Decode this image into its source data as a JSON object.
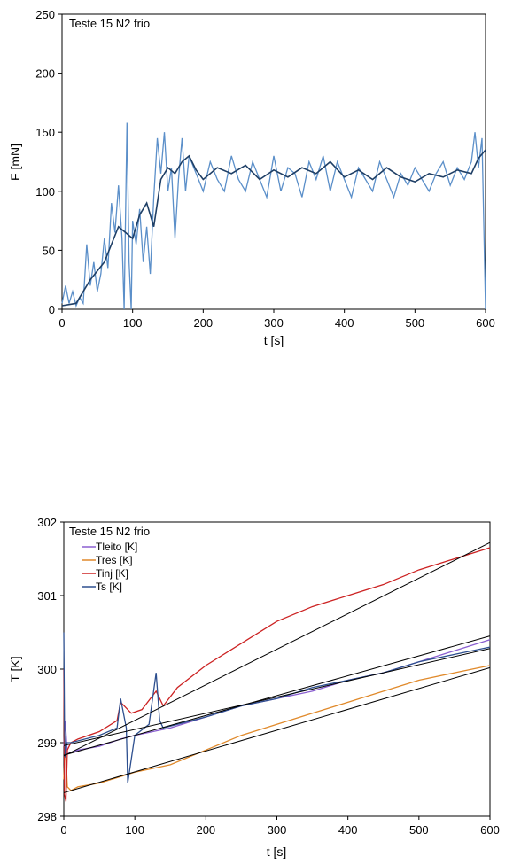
{
  "chart_data": [
    {
      "type": "line",
      "title": "Teste 15 N2 frio",
      "xlabel": "t [s]",
      "ylabel": "F [mN]",
      "xlim": [
        0,
        600
      ],
      "ylim": [
        0,
        250
      ],
      "x_ticks": [
        0,
        100,
        200,
        300,
        400,
        500,
        600
      ],
      "y_ticks": [
        0,
        50,
        100,
        150,
        200,
        250
      ],
      "grid": false,
      "series": [
        {
          "color": "#5b8fc9",
          "x": [
            0,
            5,
            10,
            15,
            20,
            25,
            30,
            35,
            40,
            45,
            50,
            55,
            60,
            65,
            70,
            75,
            80,
            85,
            88,
            90,
            92,
            95,
            98,
            100,
            105,
            110,
            115,
            120,
            125,
            130,
            135,
            140,
            145,
            150,
            155,
            160,
            165,
            170,
            175,
            180,
            190,
            200,
            210,
            220,
            230,
            240,
            250,
            260,
            270,
            280,
            290,
            300,
            310,
            320,
            330,
            340,
            350,
            360,
            370,
            380,
            390,
            400,
            410,
            420,
            430,
            440,
            450,
            460,
            470,
            480,
            490,
            500,
            510,
            520,
            530,
            540,
            550,
            560,
            570,
            580,
            585,
            590,
            595,
            600
          ],
          "values": [
            5,
            20,
            5,
            15,
            3,
            10,
            5,
            55,
            20,
            40,
            15,
            30,
            60,
            35,
            90,
            65,
            105,
            60,
            0,
            80,
            158,
            40,
            0,
            75,
            55,
            85,
            40,
            70,
            30,
            95,
            145,
            115,
            150,
            100,
            120,
            60,
            110,
            145,
            100,
            130,
            115,
            100,
            125,
            110,
            100,
            130,
            110,
            100,
            125,
            110,
            95,
            130,
            100,
            120,
            115,
            95,
            125,
            110,
            130,
            100,
            125,
            110,
            95,
            120,
            110,
            100,
            125,
            110,
            95,
            115,
            105,
            120,
            110,
            100,
            115,
            125,
            105,
            120,
            110,
            125,
            150,
            120,
            145,
            0
          ]
        },
        {
          "color": "#1f3f66",
          "x": [
            0,
            20,
            40,
            60,
            70,
            80,
            90,
            100,
            110,
            120,
            130,
            140,
            150,
            160,
            170,
            180,
            190,
            200,
            220,
            240,
            260,
            280,
            300,
            320,
            340,
            360,
            380,
            400,
            420,
            440,
            460,
            480,
            500,
            520,
            540,
            560,
            580,
            590,
            600
          ],
          "values": [
            3,
            5,
            25,
            40,
            55,
            70,
            65,
            60,
            80,
            90,
            70,
            110,
            120,
            115,
            125,
            130,
            118,
            110,
            120,
            115,
            122,
            110,
            118,
            112,
            120,
            115,
            125,
            112,
            118,
            110,
            120,
            112,
            108,
            115,
            112,
            118,
            115,
            128,
            135
          ]
        }
      ]
    },
    {
      "type": "line",
      "title": "Teste 15 N2 frio",
      "xlabel": "t [s]",
      "ylabel": "T [K]",
      "xlim": [
        0,
        600
      ],
      "ylim": [
        298,
        302
      ],
      "x_ticks": [
        0,
        100,
        200,
        300,
        400,
        500,
        600
      ],
      "y_ticks": [
        298,
        299,
        300,
        301,
        302
      ],
      "grid": false,
      "legend": "top-left",
      "series": [
        {
          "name": "Tleito  [K]",
          "color": "#8a5fd0",
          "x": [
            0,
            2,
            5,
            20,
            50,
            80,
            100,
            150,
            200,
            250,
            300,
            350,
            400,
            450,
            500,
            550,
            600
          ],
          "values": [
            298.95,
            299.3,
            298.85,
            298.9,
            298.95,
            299.05,
            299.1,
            299.2,
            299.35,
            299.5,
            299.6,
            299.7,
            299.85,
            299.95,
            300.1,
            300.25,
            300.4
          ]
        },
        {
          "name": "Tres  [K]",
          "color": "#e0892a",
          "x": [
            0,
            2,
            5,
            10,
            20,
            50,
            100,
            150,
            200,
            250,
            300,
            350,
            400,
            450,
            500,
            550,
            600
          ],
          "values": [
            298.5,
            299.0,
            298.4,
            298.35,
            298.4,
            298.45,
            298.6,
            298.7,
            298.9,
            299.1,
            299.25,
            299.4,
            299.55,
            299.7,
            299.85,
            299.95,
            300.05
          ]
        },
        {
          "name": "Tinj [K]",
          "color": "#cc2222",
          "x": [
            0,
            1,
            3,
            5,
            10,
            20,
            50,
            75,
            80,
            95,
            110,
            130,
            140,
            160,
            200,
            250,
            300,
            350,
            400,
            450,
            500,
            550,
            600
          ],
          "values": [
            300.0,
            298.3,
            298.2,
            298.9,
            299.0,
            299.05,
            299.15,
            299.3,
            299.55,
            299.4,
            299.45,
            299.7,
            299.5,
            299.75,
            300.05,
            300.35,
            300.65,
            300.85,
            301.0,
            301.15,
            301.35,
            301.5,
            301.65
          ]
        },
        {
          "name": "Ts  [K]",
          "color": "#2d4f8f",
          "x": [
            0,
            1,
            2,
            4,
            10,
            30,
            50,
            75,
            80,
            88,
            90,
            100,
            120,
            130,
            135,
            140,
            160,
            200,
            250,
            300,
            350,
            400,
            450,
            500,
            550,
            600
          ],
          "values": [
            300.5,
            299.2,
            298.8,
            299.0,
            299.0,
            299.05,
            299.1,
            299.2,
            299.6,
            299.2,
            298.45,
            299.1,
            299.25,
            299.95,
            299.3,
            299.2,
            299.25,
            299.35,
            299.5,
            299.6,
            299.75,
            299.85,
            299.95,
            300.1,
            300.2,
            300.3
          ]
        }
      ],
      "trendlines": [
        {
          "x": [
            0,
            600
          ],
          "values": [
            298.83,
            300.45
          ]
        },
        {
          "x": [
            0,
            600
          ],
          "values": [
            298.32,
            300.02
          ]
        },
        {
          "x": [
            0,
            600
          ],
          "values": [
            298.82,
            301.72
          ]
        },
        {
          "x": [
            0,
            600
          ],
          "values": [
            298.96,
            300.28
          ]
        }
      ]
    }
  ]
}
